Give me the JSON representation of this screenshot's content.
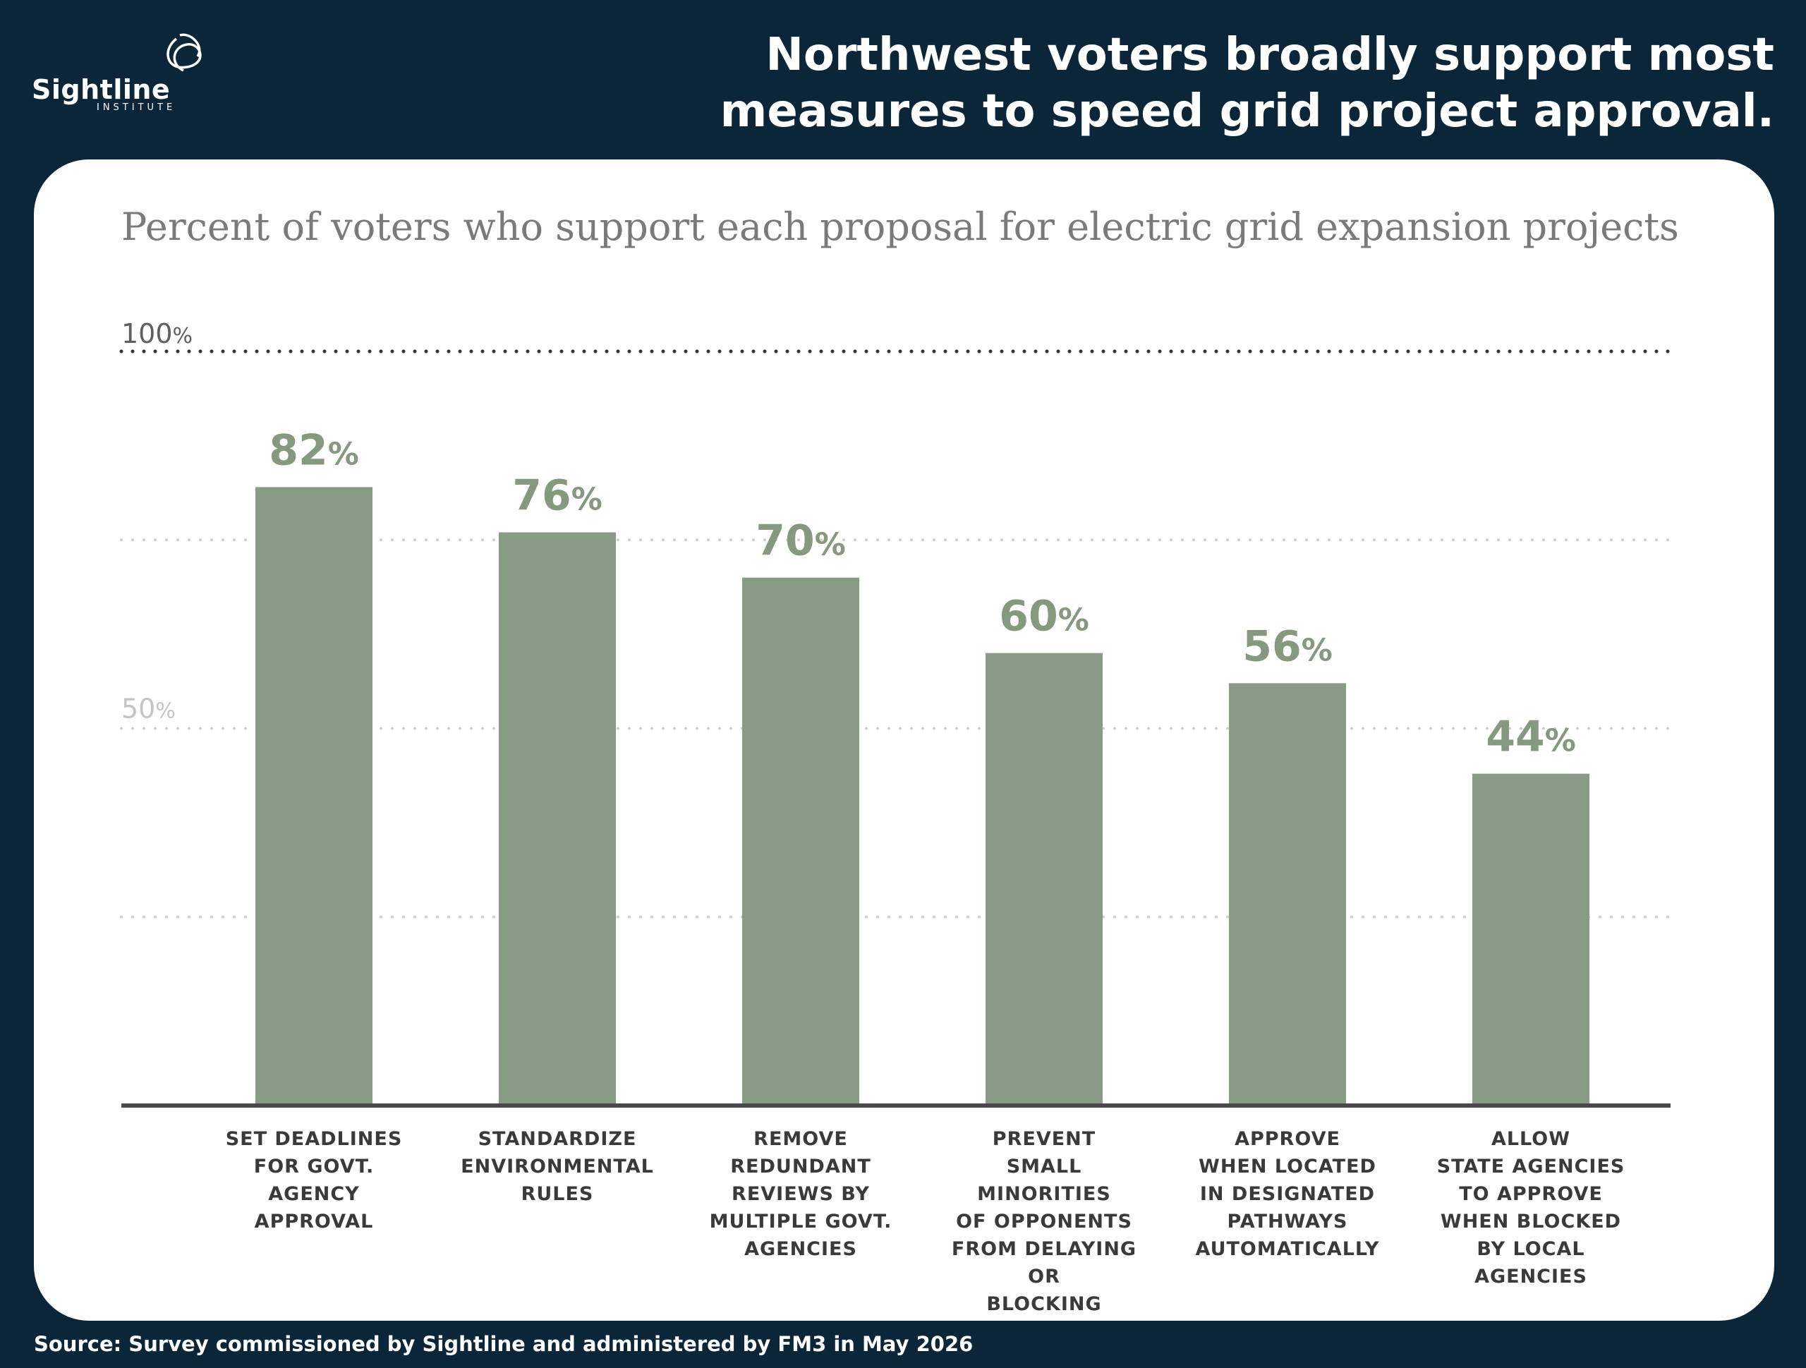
{
  "logo": {
    "name": "Sightline",
    "sub": "INSTITUTE"
  },
  "headline": "Northwest voters broadly support most measures to speed grid project approval.",
  "source": "Source: Survey commissioned by Sightline and administered by FM3 in May 2026",
  "colors": {
    "background": "#0b2539",
    "bar": "#879b85",
    "label": "#85997f"
  },
  "chart_data": {
    "type": "bar",
    "title": "Percent of voters who support each proposal for electric grid expansion projects",
    "categories": [
      "Set deadlines\nfor govt.\nagency\napproval",
      "Standardize\nenvironmental\nrules",
      "Remove\nredundant\nreviews by\nmultiple govt.\nagencies",
      "Prevent\nsmall minorities\nof opponents\nfrom delaying or\nblocking",
      "Approve\nwhen located\nin designated\npathways\nautomatically",
      "Allow\nstate agencies\nto approve\nwhen blocked\nby local\nagencies"
    ],
    "values": [
      82,
      76,
      70,
      60,
      56,
      44
    ],
    "value_labels": [
      "82%",
      "76%",
      "70%",
      "60%",
      "56%",
      "44%"
    ],
    "ylim": [
      0,
      100
    ],
    "y_tick_labels": [
      "50%",
      "100%"
    ],
    "gridlines": [
      25,
      50,
      75,
      100
    ],
    "grid": true
  }
}
